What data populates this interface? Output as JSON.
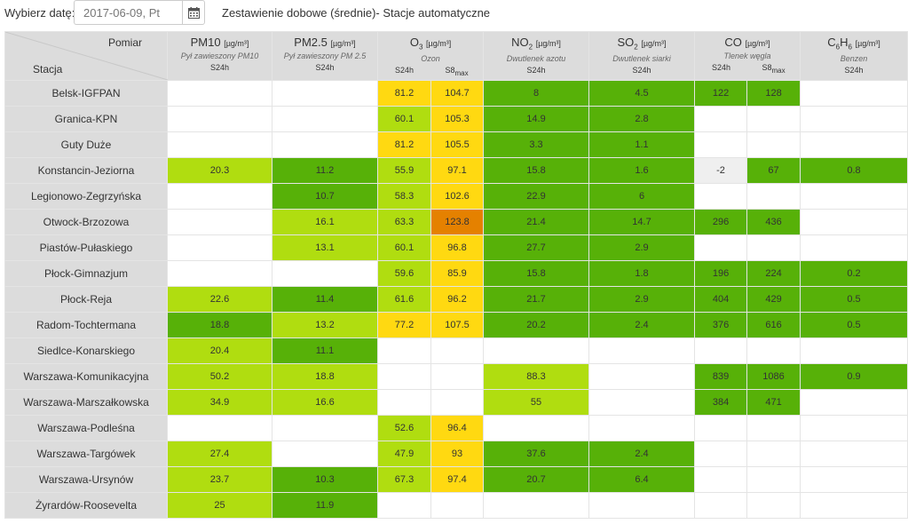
{
  "topbar": {
    "date_label": "Wybierz datę:",
    "date_value": "2017-06-09, Pt",
    "calendar_icon": "calendar-icon",
    "title": "Zestawienie dobowe (średnie)- Stacje automatyczne"
  },
  "header": {
    "pomiar": "Pomiar",
    "stacja": "Stacja",
    "pollutants": [
      {
        "name": "PM10",
        "sub": "",
        "unit": "[µg/m³]",
        "desc": "Pył zawieszony PM10",
        "subs": [
          "S24h"
        ]
      },
      {
        "name": "PM2.5",
        "sub": "",
        "unit": "[µg/m³]",
        "desc": "Pył zawieszony PM 2.5",
        "subs": [
          "S24h"
        ]
      },
      {
        "name": "O",
        "sub": "3",
        "unit": "[µg/m³]",
        "desc": "Ozon",
        "subs": [
          "S24h",
          "S8max"
        ]
      },
      {
        "name": "NO",
        "sub": "2",
        "unit": "[µg/m³]",
        "desc": "Dwutlenek azotu",
        "subs": [
          "S24h"
        ]
      },
      {
        "name": "SO",
        "sub": "2",
        "unit": "[µg/m³]",
        "desc": "Dwutlenek siarki",
        "subs": [
          "S24h"
        ]
      },
      {
        "name": "CO",
        "sub": "",
        "unit": "[µg/m³]",
        "desc": "Tlenek węgla",
        "subs": [
          "S24h",
          "S8max"
        ]
      },
      {
        "name": "C6H6",
        "sub": "",
        "unit": "[µg/m³]",
        "desc": "Benzen",
        "subs": [
          "S24h"
        ]
      }
    ]
  },
  "colors": {
    "very_good": "#57b108",
    "good": "#b0dd10",
    "moderate": "#ffd911",
    "sufficient": "#e58100",
    "no_index": "#efefef"
  },
  "rows": [
    {
      "station": "Belsk-IGFPAN",
      "cells": [
        [
          "",
          ""
        ],
        [
          "",
          ""
        ],
        [
          "81.2",
          "y1"
        ],
        [
          "104.7",
          "y1"
        ],
        [
          "8",
          "g1"
        ],
        [
          "4.5",
          "g1"
        ],
        [
          "122",
          "g1"
        ],
        [
          "128",
          "g1"
        ],
        [
          "",
          ""
        ]
      ]
    },
    {
      "station": "Granica-KPN",
      "cells": [
        [
          "",
          ""
        ],
        [
          "",
          ""
        ],
        [
          "60.1",
          "g2"
        ],
        [
          "105.3",
          "y1"
        ],
        [
          "14.9",
          "g1"
        ],
        [
          "2.8",
          "g1"
        ],
        [
          "",
          ""
        ],
        [
          "",
          ""
        ],
        [
          "",
          ""
        ]
      ]
    },
    {
      "station": "Guty Duże",
      "cells": [
        [
          "",
          ""
        ],
        [
          "",
          ""
        ],
        [
          "81.2",
          "y1"
        ],
        [
          "105.5",
          "y1"
        ],
        [
          "3.3",
          "g1"
        ],
        [
          "1.1",
          "g1"
        ],
        [
          "",
          ""
        ],
        [
          "",
          ""
        ],
        [
          "",
          ""
        ]
      ]
    },
    {
      "station": "Konstancin-Jeziorna",
      "cells": [
        [
          "20.3",
          "g2"
        ],
        [
          "11.2",
          "g1"
        ],
        [
          "55.9",
          "g2"
        ],
        [
          "97.1",
          "y1"
        ],
        [
          "15.8",
          "g1"
        ],
        [
          "1.6",
          "g1"
        ],
        [
          "-2",
          "gr"
        ],
        [
          "67",
          "g1"
        ],
        [
          "0.8",
          "g1"
        ]
      ]
    },
    {
      "station": "Legionowo-Zegrzyńska",
      "cells": [
        [
          "",
          ""
        ],
        [
          "10.7",
          "g1"
        ],
        [
          "58.3",
          "g2"
        ],
        [
          "102.6",
          "y1"
        ],
        [
          "22.9",
          "g1"
        ],
        [
          "6",
          "g1"
        ],
        [
          "",
          ""
        ],
        [
          "",
          ""
        ],
        [
          "",
          ""
        ]
      ]
    },
    {
      "station": "Otwock-Brzozowa",
      "cells": [
        [
          "",
          ""
        ],
        [
          "16.1",
          "g2"
        ],
        [
          "63.3",
          "g2"
        ],
        [
          "123.8",
          "o1"
        ],
        [
          "21.4",
          "g1"
        ],
        [
          "14.7",
          "g1"
        ],
        [
          "296",
          "g1"
        ],
        [
          "436",
          "g1"
        ],
        [
          "",
          ""
        ]
      ]
    },
    {
      "station": "Piastów-Pułaskiego",
      "cells": [
        [
          "",
          ""
        ],
        [
          "13.1",
          "g2"
        ],
        [
          "60.1",
          "g2"
        ],
        [
          "96.8",
          "y1"
        ],
        [
          "27.7",
          "g1"
        ],
        [
          "2.9",
          "g1"
        ],
        [
          "",
          ""
        ],
        [
          "",
          ""
        ],
        [
          "",
          ""
        ]
      ]
    },
    {
      "station": "Płock-Gimnazjum",
      "cells": [
        [
          "",
          ""
        ],
        [
          "",
          ""
        ],
        [
          "59.6",
          "g2"
        ],
        [
          "85.9",
          "y1"
        ],
        [
          "15.8",
          "g1"
        ],
        [
          "1.8",
          "g1"
        ],
        [
          "196",
          "g1"
        ],
        [
          "224",
          "g1"
        ],
        [
          "0.2",
          "g1"
        ]
      ]
    },
    {
      "station": "Płock-Reja",
      "cells": [
        [
          "22.6",
          "g2"
        ],
        [
          "11.4",
          "g1"
        ],
        [
          "61.6",
          "g2"
        ],
        [
          "96.2",
          "y1"
        ],
        [
          "21.7",
          "g1"
        ],
        [
          "2.9",
          "g1"
        ],
        [
          "404",
          "g1"
        ],
        [
          "429",
          "g1"
        ],
        [
          "0.5",
          "g1"
        ]
      ]
    },
    {
      "station": "Radom-Tochtermana",
      "cells": [
        [
          "18.8",
          "g1"
        ],
        [
          "13.2",
          "g2"
        ],
        [
          "77.2",
          "y1"
        ],
        [
          "107.5",
          "y1"
        ],
        [
          "20.2",
          "g1"
        ],
        [
          "2.4",
          "g1"
        ],
        [
          "376",
          "g1"
        ],
        [
          "616",
          "g1"
        ],
        [
          "0.5",
          "g1"
        ]
      ]
    },
    {
      "station": "Siedlce-Konarskiego",
      "cells": [
        [
          "20.4",
          "g2"
        ],
        [
          "11.1",
          "g1"
        ],
        [
          "",
          ""
        ],
        [
          "",
          ""
        ],
        [
          "",
          ""
        ],
        [
          "",
          ""
        ],
        [
          "",
          ""
        ],
        [
          "",
          ""
        ],
        [
          "",
          ""
        ]
      ]
    },
    {
      "station": "Warszawa-Komunikacyjna",
      "cells": [
        [
          "50.2",
          "g2"
        ],
        [
          "18.8",
          "g2"
        ],
        [
          "",
          ""
        ],
        [
          "",
          ""
        ],
        [
          "88.3",
          "g2"
        ],
        [
          "",
          ""
        ],
        [
          "839",
          "g1"
        ],
        [
          "1086",
          "g1"
        ],
        [
          "0.9",
          "g1"
        ]
      ]
    },
    {
      "station": "Warszawa-Marszałkowska",
      "cells": [
        [
          "34.9",
          "g2"
        ],
        [
          "16.6",
          "g2"
        ],
        [
          "",
          ""
        ],
        [
          "",
          ""
        ],
        [
          "55",
          "g2"
        ],
        [
          "",
          ""
        ],
        [
          "384",
          "g1"
        ],
        [
          "471",
          "g1"
        ],
        [
          "",
          ""
        ]
      ]
    },
    {
      "station": "Warszawa-Podleśna",
      "cells": [
        [
          "",
          ""
        ],
        [
          "",
          ""
        ],
        [
          "52.6",
          "g2"
        ],
        [
          "96.4",
          "y1"
        ],
        [
          "",
          ""
        ],
        [
          "",
          ""
        ],
        [
          "",
          ""
        ],
        [
          "",
          ""
        ],
        [
          "",
          ""
        ]
      ]
    },
    {
      "station": "Warszawa-Targówek",
      "cells": [
        [
          "27.4",
          "g2"
        ],
        [
          "",
          ""
        ],
        [
          "47.9",
          "g2"
        ],
        [
          "93",
          "y1"
        ],
        [
          "37.6",
          "g1"
        ],
        [
          "2.4",
          "g1"
        ],
        [
          "",
          ""
        ],
        [
          "",
          ""
        ],
        [
          "",
          ""
        ]
      ]
    },
    {
      "station": "Warszawa-Ursynów",
      "cells": [
        [
          "23.7",
          "g2"
        ],
        [
          "10.3",
          "g1"
        ],
        [
          "67.3",
          "g2"
        ],
        [
          "97.4",
          "y1"
        ],
        [
          "20.7",
          "g1"
        ],
        [
          "6.4",
          "g1"
        ],
        [
          "",
          ""
        ],
        [
          "",
          ""
        ],
        [
          "",
          ""
        ]
      ]
    },
    {
      "station": "Żyrardów-Roosevelta",
      "cells": [
        [
          "25",
          "g2"
        ],
        [
          "11.9",
          "g1"
        ],
        [
          "",
          ""
        ],
        [
          "",
          ""
        ],
        [
          "",
          ""
        ],
        [
          "",
          ""
        ],
        [
          "",
          ""
        ],
        [
          "",
          ""
        ],
        [
          "",
          ""
        ]
      ]
    }
  ]
}
